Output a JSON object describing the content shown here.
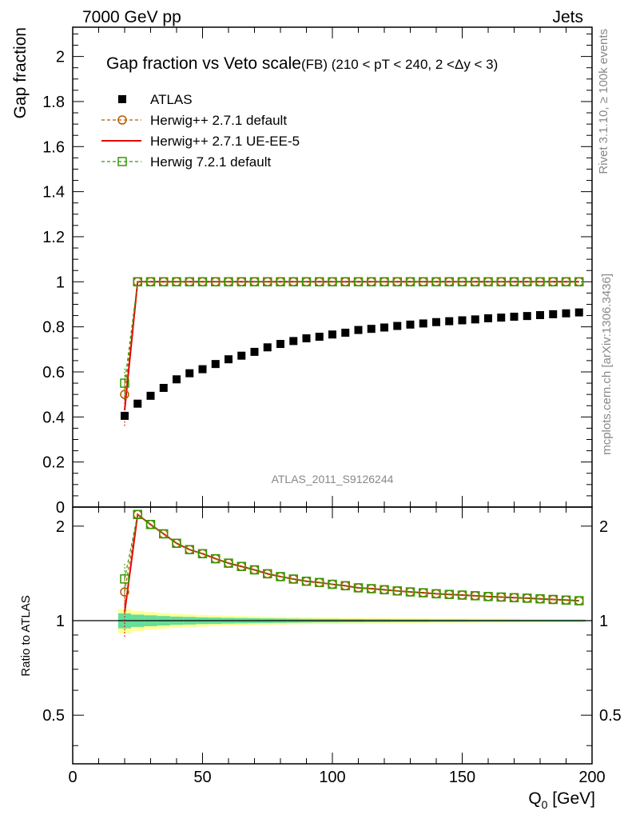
{
  "header": {
    "left": "7000 GeV pp",
    "right": "Jets"
  },
  "side_labels": {
    "rivet": "Rivet 3.1.10, ≥ 100k events",
    "mcplots": "mcplots.cern.ch [arXiv:1306.3436]"
  },
  "chart_data": {
    "type": "scatter",
    "title": "Gap fraction vs Veto scale",
    "subtitle": "(FB) (210 < pT < 240, 2 <Δy < 3)",
    "watermark": "ATLAS_2011_S9126244",
    "xlabel": "Q",
    "xlabel_sub": "0",
    "xlabel_unit": " [GeV]",
    "ylabel": "Gap fraction",
    "ratio_ylabel": "Ratio to ATLAS",
    "xlim": [
      0,
      200
    ],
    "ylim": [
      0,
      2.13
    ],
    "ratio_ylim": [
      0.35,
      2.3
    ],
    "x_ticks": [
      "0",
      "50",
      "100",
      "150",
      "200"
    ],
    "y_ticks": [
      "0",
      "0.2",
      "0.4",
      "0.6",
      "0.8",
      "1",
      "1.2",
      "1.4",
      "1.6",
      "1.8",
      "2"
    ],
    "ratio_ticks": [
      "0.5",
      "1",
      "2"
    ],
    "ratio_ticks_right": [
      "0.5",
      "1",
      "2"
    ],
    "legend_position": "top-left",
    "x": [
      20,
      25,
      30,
      35,
      40,
      45,
      50,
      55,
      60,
      65,
      70,
      75,
      80,
      85,
      90,
      95,
      100,
      105,
      110,
      115,
      120,
      125,
      130,
      135,
      140,
      145,
      150,
      155,
      160,
      165,
      170,
      175,
      180,
      185,
      190,
      195
    ],
    "series": [
      {
        "name": "ATLAS",
        "marker": "filled-square",
        "color": "#000000",
        "values": [
          0.405,
          0.459,
          0.494,
          0.529,
          0.567,
          0.594,
          0.612,
          0.635,
          0.656,
          0.672,
          0.689,
          0.709,
          0.724,
          0.737,
          0.749,
          0.756,
          0.766,
          0.774,
          0.786,
          0.791,
          0.797,
          0.804,
          0.81,
          0.815,
          0.821,
          0.825,
          0.829,
          0.833,
          0.838,
          0.841,
          0.845,
          0.848,
          0.852,
          0.856,
          0.86,
          0.864
        ]
      },
      {
        "name": "Herwig++ 2.7.1 default",
        "marker": "open-circle",
        "line": "dashed",
        "color": "#b35900",
        "values": [
          0.5,
          1.0,
          1.0,
          1.0,
          1.0,
          1.0,
          1.0,
          1.0,
          1.0,
          1.0,
          1.0,
          1.0,
          1.0,
          1.0,
          1.0,
          1.0,
          1.0,
          1.0,
          1.0,
          1.0,
          1.0,
          1.0,
          1.0,
          1.0,
          1.0,
          1.0,
          1.0,
          1.0,
          1.0,
          1.0,
          1.0,
          1.0,
          1.0,
          1.0,
          1.0,
          1.0
        ]
      },
      {
        "name": "Herwig++ 2.7.1 UE-EE-5",
        "marker": "none",
        "line": "solid",
        "color": "#e60000",
        "values": [
          0.43,
          1.0,
          1.0,
          1.0,
          1.0,
          1.0,
          1.0,
          1.0,
          1.0,
          1.0,
          1.0,
          1.0,
          1.0,
          1.0,
          1.0,
          1.0,
          1.0,
          1.0,
          1.0,
          1.0,
          1.0,
          1.0,
          1.0,
          1.0,
          1.0,
          1.0,
          1.0,
          1.0,
          1.0,
          1.0,
          1.0,
          1.0,
          1.0,
          1.0,
          1.0,
          1.0
        ]
      },
      {
        "name": "Herwig 7.2.1 default",
        "marker": "open-square",
        "line": "dashed",
        "color": "#339900",
        "values": [
          0.55,
          1.0,
          1.0,
          1.0,
          1.0,
          1.0,
          1.0,
          1.0,
          1.0,
          1.0,
          1.0,
          1.0,
          1.0,
          1.0,
          1.0,
          1.0,
          1.0,
          1.0,
          1.0,
          1.0,
          1.0,
          1.0,
          1.0,
          1.0,
          1.0,
          1.0,
          1.0,
          1.0,
          1.0,
          1.0,
          1.0,
          1.0,
          1.0,
          1.0,
          1.0,
          1.0
        ]
      }
    ],
    "ratio_band": {
      "x_edges": [
        17.5,
        22.5,
        27.5,
        32.5,
        37.5,
        42.5,
        47.5,
        52.5,
        57.5,
        62.5,
        67.5,
        72.5,
        77.5,
        82.5,
        87.5,
        92.5,
        97.5,
        102.5,
        107.5,
        112.5,
        117.5,
        122.5,
        127.5,
        132.5,
        137.5,
        142.5,
        147.5,
        152.5,
        157.5,
        162.5,
        167.5,
        172.5,
        177.5,
        182.5,
        187.5,
        192.5,
        197.5
      ],
      "stat": [
        0.055,
        0.045,
        0.04,
        0.035,
        0.03,
        0.028,
        0.025,
        0.023,
        0.021,
        0.02,
        0.018,
        0.017,
        0.016,
        0.015,
        0.014,
        0.013,
        0.013,
        0.012,
        0.012,
        0.011,
        0.011,
        0.01,
        0.01,
        0.01,
        0.009,
        0.009,
        0.009,
        0.008,
        0.008,
        0.008,
        0.008,
        0.007,
        0.007,
        0.007,
        0.007,
        0.007
      ],
      "total": [
        0.09,
        0.075,
        0.065,
        0.058,
        0.052,
        0.047,
        0.043,
        0.04,
        0.037,
        0.034,
        0.032,
        0.03,
        0.028,
        0.026,
        0.025,
        0.024,
        0.023,
        0.022,
        0.021,
        0.02,
        0.019,
        0.018,
        0.018,
        0.017,
        0.016,
        0.016,
        0.015,
        0.015,
        0.014,
        0.014,
        0.013,
        0.013,
        0.013,
        0.012,
        0.012,
        0.012
      ],
      "stat_color": "#66dd99",
      "total_color": "#ffff99"
    }
  }
}
